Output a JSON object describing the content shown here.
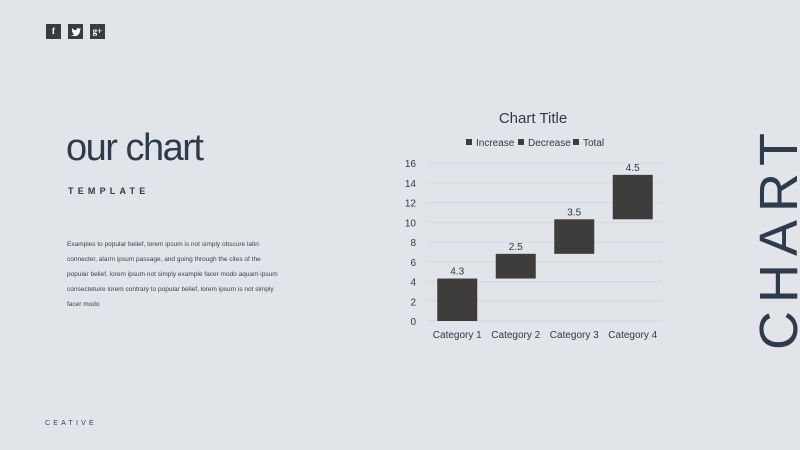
{
  "social": {
    "facebook_glyph": "f",
    "google_plus_glyph": "g+"
  },
  "slide": {
    "title": "our chart",
    "subtitle": "TEMPLATE",
    "body": "Examples to popular belief, lorem ipsum is not simply obscure latin connecter, alarm ipsum passage, and going through the cites of the popular belief, lorem ipsum not simply example facer modo aquam ipsum consectetuire lorem contrary to popular belief, lorem ipsum is not simply facer modo",
    "footer": "CEATIVE",
    "vertical_word": "CHART"
  },
  "colors": {
    "background": "#e1e4e9",
    "text": "#2f3a4a",
    "bar": "#3f3d3c",
    "icon_bg": "#3a3b3d"
  },
  "chart_data": {
    "type": "bar",
    "subtype": "waterfall",
    "title": "Chart Title",
    "legend": [
      "Increase",
      "Decrease",
      "Total"
    ],
    "legend_placement": "top",
    "categories": [
      "Category 1",
      "Category 2",
      "Category 3",
      "Category 4"
    ],
    "values": [
      4.3,
      2.5,
      3.5,
      4.5
    ],
    "bar_ranges": [
      [
        0,
        4.3
      ],
      [
        4.3,
        6.8
      ],
      [
        6.8,
        10.3
      ],
      [
        10.3,
        14.8
      ]
    ],
    "ylim": [
      0,
      16
    ],
    "yticks": [
      0,
      2,
      4,
      6,
      8,
      10,
      12,
      14,
      16
    ],
    "grid": true
  }
}
